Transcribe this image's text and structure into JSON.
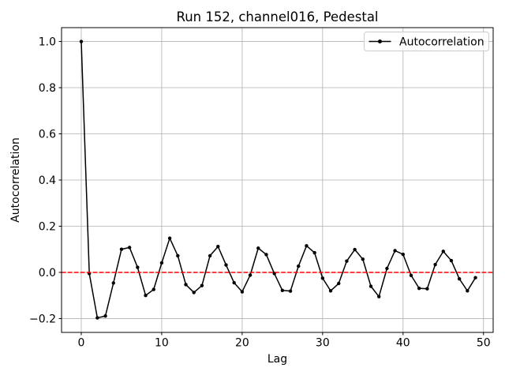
{
  "figure": {
    "background": "#ffffff"
  },
  "chart_data": {
    "type": "line",
    "title": "Run 152, channel016, Pedestal",
    "xlabel": "Lag",
    "ylabel": "Autocorrelation",
    "legend": {
      "label": "Autocorrelation",
      "position": "upper right"
    },
    "grid": true,
    "grid_color": "#b0b0b0",
    "line_color": "#000000",
    "marker": "dot",
    "zero_line": {
      "y": 0.0,
      "color": "#ff0000",
      "style": "dashed"
    },
    "xlim": [
      -2.45,
      51.2
    ],
    "ylim": [
      -0.26,
      1.06
    ],
    "xticks": [
      0,
      10,
      20,
      30,
      40,
      50
    ],
    "yticks": [
      -0.2,
      0.0,
      0.2,
      0.4,
      0.6,
      0.8,
      1.0
    ],
    "x": [
      0,
      1,
      2,
      3,
      4,
      5,
      6,
      7,
      8,
      9,
      10,
      11,
      12,
      13,
      14,
      15,
      16,
      17,
      18,
      19,
      20,
      21,
      22,
      23,
      24,
      25,
      26,
      27,
      28,
      29,
      30,
      31,
      32,
      33,
      34,
      35,
      36,
      37,
      38,
      39,
      40,
      41,
      42,
      43,
      44,
      45,
      46,
      47,
      48,
      49
    ],
    "values": [
      1.0,
      -0.005,
      -0.197,
      -0.189,
      -0.046,
      0.1,
      0.108,
      0.022,
      -0.1,
      -0.074,
      0.041,
      0.148,
      0.072,
      -0.053,
      -0.087,
      -0.057,
      0.072,
      0.112,
      0.032,
      -0.045,
      -0.084,
      -0.012,
      0.105,
      0.077,
      -0.005,
      -0.078,
      -0.081,
      0.027,
      0.115,
      0.085,
      -0.025,
      -0.08,
      -0.048,
      0.049,
      0.099,
      0.057,
      -0.06,
      -0.105,
      0.017,
      0.094,
      0.078,
      -0.013,
      -0.069,
      -0.071,
      0.034,
      0.091,
      0.051,
      -0.028,
      -0.08,
      -0.023
    ]
  }
}
